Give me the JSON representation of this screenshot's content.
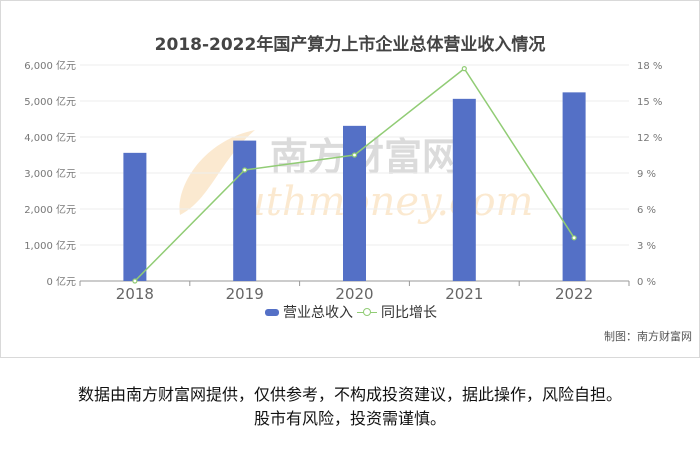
{
  "chart_data": {
    "type": "bar",
    "title": "2018-2022年国产算力上市企业总体营业收入情况",
    "categories": [
      "2018",
      "2019",
      "2020",
      "2021",
      "2022"
    ],
    "series": [
      {
        "name": "营业总收入",
        "type": "bar",
        "axis": "left",
        "values": [
          3560,
          3900,
          4310,
          5060,
          5240
        ],
        "color": "#5470c6"
      },
      {
        "name": "同比增长",
        "type": "line",
        "axis": "right",
        "values": [
          0,
          9.25,
          10.5,
          17.7,
          3.6
        ],
        "color": "#91cc75"
      }
    ],
    "y_left": {
      "range": [
        0,
        6000
      ],
      "ticks": [
        "0 亿元",
        "1,000 亿元",
        "2,000 亿元",
        "3,000 亿元",
        "4,000 亿元",
        "5,000 亿元",
        "6,000 亿元"
      ]
    },
    "y_right": {
      "range": [
        0,
        18
      ],
      "ticks": [
        "0 %",
        "3 %",
        "6 %",
        "9 %",
        "12 %",
        "15 %",
        "18 %"
      ]
    },
    "grid": true,
    "legend": "bottom-center"
  },
  "source": "制图：南方财富网",
  "watermark": "南方财富网 suthmoney.com",
  "disclaimer": {
    "line1": "数据由南方财富网提供，仅供参考，不构成投资建议，据此操作，风险自担。",
    "line2": "股市有风险，投资需谨慎。"
  }
}
